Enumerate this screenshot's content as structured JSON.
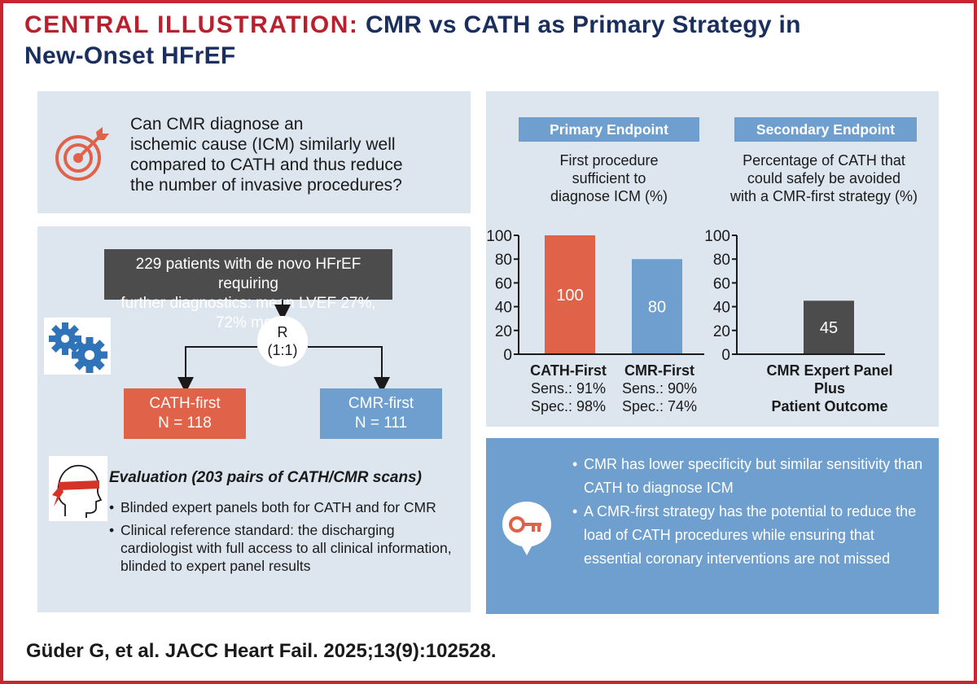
{
  "header": {
    "title_prefix": "CENTRAL ILLUSTRATION:",
    "title_line1": "CMR vs CATH as Primary Strategy in",
    "title_line2": "New-Onset HFrEF"
  },
  "question": {
    "icon": "target-icon",
    "lines": [
      "Can CMR diagnose an",
      "ischemic cause (ICM) similarly well",
      "compared to CATH and thus reduce",
      "the number of invasive procedures?"
    ]
  },
  "design": {
    "icon": "gears-icon",
    "population_line1": "229 patients with de novo HFrEF requiring",
    "population_line2": "further diagnostics: mean LVEF 27%, 72% men",
    "randomization_line1": "R",
    "randomization_line2": "(1:1)",
    "cath_arm": {
      "label": "CATH-first",
      "n": "N = 118"
    },
    "cmr_arm": {
      "label": "CMR-first",
      "n": "N = 111"
    },
    "evaluation_icon": "blindfolded-head-icon",
    "evaluation_title": "Evaluation (203 pairs of CATH/CMR scans)",
    "evaluation_items": [
      "Blinded expert panels both for CATH and for CMR",
      "Clinical reference standard: the discharging cardiologist with full access to all clinical information, blinded to expert panel results"
    ]
  },
  "results": {
    "primary": {
      "label": "Primary Endpoint",
      "desc_lines": [
        "First procedure",
        "sufficient to",
        "diagnose ICM (%)"
      ]
    },
    "secondary": {
      "label": "Secondary Endpoint",
      "desc_lines": [
        "Percentage of CATH that",
        "could safely be avoided",
        "with a CMR-first strategy (%)"
      ]
    },
    "captions": {
      "cath": [
        "CATH-First",
        "Sens.: 91%",
        "Spec.: 98%"
      ],
      "cmr": [
        "CMR-First",
        "Sens.: 90%",
        "Spec.: 74%"
      ],
      "panel": [
        "CMR Expert Panel",
        "Plus",
        "Patient Outcome"
      ]
    }
  },
  "chart_data": [
    {
      "type": "bar",
      "title": "Primary Endpoint",
      "categories": [
        "CATH-First",
        "CMR-First"
      ],
      "values": [
        100,
        80
      ],
      "colors": [
        "#e06248",
        "#6e9fcf"
      ],
      "ylim": [
        0,
        100
      ],
      "yticks": [
        0,
        20,
        40,
        60,
        80,
        100
      ],
      "grid": false
    },
    {
      "type": "bar",
      "title": "Secondary Endpoint",
      "categories": [
        "CMR Expert Panel Plus Patient Outcome"
      ],
      "values": [
        45
      ],
      "colors": [
        "#4c4c4c"
      ],
      "ylim": [
        0,
        100
      ],
      "yticks": [
        0,
        20,
        40,
        60,
        80,
        100
      ],
      "grid": false
    }
  ],
  "conclusion": {
    "icon": "key-icon",
    "items": [
      "CMR has lower specificity but similar sensitivity than CATH to diagnose ICM",
      "A CMR-first strategy has the potential to reduce the load of CATH procedures while ensuring that essential coronary interventions are not missed"
    ]
  },
  "citation": "Güder G, et al. JACC Heart Fail. 2025;13(9):102528.",
  "colors": {
    "frame": "#c8262f",
    "title_red": "#b8202d",
    "title_navy": "#1b2f5e",
    "panel_bg": "#dde5ef",
    "cath_orange": "#e06248",
    "cmr_blue": "#6e9fcf",
    "dark_gray": "#4c4c4c"
  }
}
